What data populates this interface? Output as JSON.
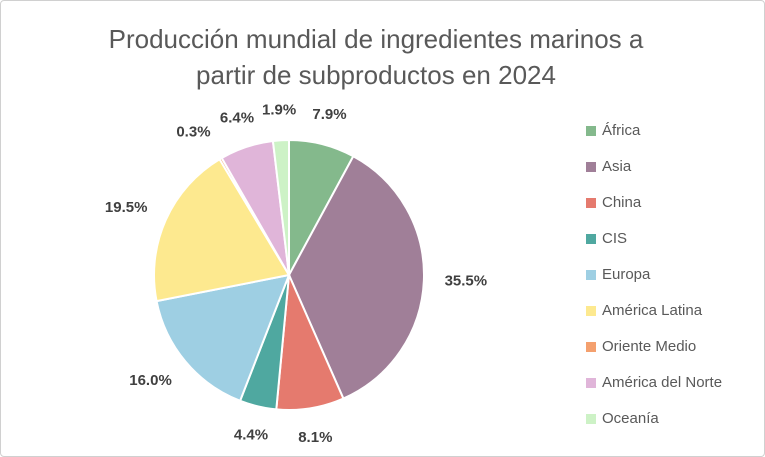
{
  "chart_data": {
    "type": "pie",
    "title": "Producción mundial de ingredientes marinos a partir de subproductos en 2024",
    "categories": [
      "África",
      "Asia",
      "China",
      "CIS",
      "Europa",
      "América Latina",
      "Oriente Medio",
      "América del Norte",
      "Oceanía"
    ],
    "values": [
      7.9,
      35.5,
      8.1,
      4.4,
      16.0,
      19.5,
      0.3,
      6.4,
      1.9
    ],
    "value_labels": [
      "7.9%",
      "35.5%",
      "8.1%",
      "4.4%",
      "16.0%",
      "19.5%",
      "0.3%",
      "6.4%",
      "1.9%"
    ],
    "colors": [
      "#84b98c",
      "#a07f98",
      "#e57a6e",
      "#4fa8a0",
      "#9ecfe3",
      "#fde98f",
      "#f4a06e",
      "#e0b5d9",
      "#cdf2c6"
    ],
    "legend": "right"
  }
}
